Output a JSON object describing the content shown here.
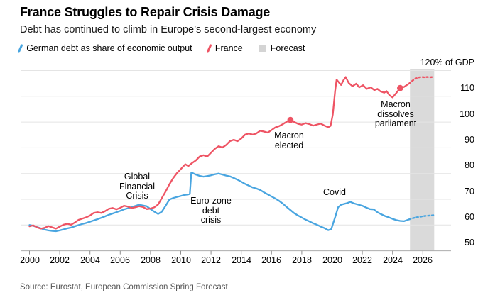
{
  "header": {
    "title": "France Struggles to Repair Crisis Damage",
    "subtitle": "Debt has continued to climb in Europe’s second-largest economy"
  },
  "legend": {
    "germany_label": "German debt as share of economic output",
    "france_label": "France",
    "forecast_label": "Forecast"
  },
  "source": "Source: Eurostat, European Commission Spring Forecast",
  "colors": {
    "germany_blue": "#49A5E0",
    "france_red": "#EE5464",
    "forecast_band": "#DADADA",
    "gridline": "#E4E4E4",
    "axis_line": "#ADADAD"
  },
  "chart_data": {
    "type": "line",
    "title": "France Struggles to Repair Crisis Damage",
    "subtitle": "Debt has continued to climb in Europe’s second-largest economy",
    "ylabel": "% of GDP",
    "ylim": [
      50,
      120
    ],
    "xlim": [
      2000,
      2026.75
    ],
    "grid": "horizontal",
    "legend_position": "top",
    "y_axis": {
      "top_label": "120% of GDP",
      "ticks": [
        "110",
        "100",
        "90",
        "80",
        "70",
        "60",
        "50"
      ],
      "gridline_values": [
        120,
        110,
        100,
        90,
        80,
        70,
        60,
        50
      ]
    },
    "x_axis": {
      "ticks": [
        "2000",
        "2002",
        "2004",
        "2006",
        "2008",
        "2010",
        "2012",
        "2014",
        "2016",
        "2018",
        "2020",
        "2022",
        "2024",
        "2026"
      ]
    },
    "forecast_band": {
      "start": 2025.15,
      "end": 2026.75,
      "color": "#DADADA",
      "label": "Forecast"
    },
    "series": [
      {
        "id": "germany",
        "name": "German debt as share of economic output",
        "color": "#49A5E0",
        "solid": [
          [
            2000,
            60.0
          ],
          [
            2000.25,
            59.7
          ],
          [
            2000.5,
            59.2
          ],
          [
            2000.75,
            58.7
          ],
          [
            2001,
            58.2
          ],
          [
            2001.25,
            57.9
          ],
          [
            2001.5,
            57.7
          ],
          [
            2001.75,
            57.6
          ],
          [
            2002,
            57.9
          ],
          [
            2002.25,
            58.3
          ],
          [
            2002.5,
            58.7
          ],
          [
            2002.75,
            59.0
          ],
          [
            2003,
            59.5
          ],
          [
            2003.25,
            60.0
          ],
          [
            2003.5,
            60.4
          ],
          [
            2003.75,
            60.8
          ],
          [
            2004,
            61.3
          ],
          [
            2004.25,
            61.8
          ],
          [
            2004.5,
            62.3
          ],
          [
            2004.75,
            62.8
          ],
          [
            2005,
            63.4
          ],
          [
            2005.25,
            64.0
          ],
          [
            2005.5,
            64.5
          ],
          [
            2005.75,
            65.0
          ],
          [
            2006,
            65.5
          ],
          [
            2006.25,
            66.1
          ],
          [
            2006.5,
            66.5
          ],
          [
            2006.75,
            67.0
          ],
          [
            2007,
            67.4
          ],
          [
            2007.25,
            67.9
          ],
          [
            2007.5,
            67.6
          ],
          [
            2007.75,
            67.3
          ],
          [
            2008,
            66.2
          ],
          [
            2008.25,
            65.2
          ],
          [
            2008.5,
            64.3
          ],
          [
            2008.75,
            65.2
          ],
          [
            2009,
            67.5
          ],
          [
            2009.25,
            69.9
          ],
          [
            2009.5,
            70.5
          ],
          [
            2009.75,
            70.9
          ],
          [
            2010,
            71.3
          ],
          [
            2010.25,
            71.7
          ],
          [
            2010.5,
            71.9
          ],
          [
            2010.6,
            72.1
          ],
          [
            2010.7,
            80.4
          ],
          [
            2011,
            79.6
          ],
          [
            2011.25,
            79.1
          ],
          [
            2011.5,
            78.8
          ],
          [
            2011.75,
            79.0
          ],
          [
            2012,
            79.3
          ],
          [
            2012.25,
            79.7
          ],
          [
            2012.5,
            80.0
          ],
          [
            2012.75,
            79.6
          ],
          [
            2013,
            79.2
          ],
          [
            2013.25,
            78.9
          ],
          [
            2013.5,
            78.3
          ],
          [
            2013.75,
            77.6
          ],
          [
            2014,
            76.8
          ],
          [
            2014.25,
            76.0
          ],
          [
            2014.5,
            75.3
          ],
          [
            2014.75,
            74.6
          ],
          [
            2015,
            74.2
          ],
          [
            2015.25,
            73.6
          ],
          [
            2015.5,
            72.7
          ],
          [
            2015.75,
            71.9
          ],
          [
            2016,
            71.1
          ],
          [
            2016.25,
            70.3
          ],
          [
            2016.5,
            69.4
          ],
          [
            2016.75,
            68.3
          ],
          [
            2017,
            67.0
          ],
          [
            2017.25,
            65.8
          ],
          [
            2017.5,
            64.6
          ],
          [
            2017.75,
            63.7
          ],
          [
            2018,
            62.9
          ],
          [
            2018.25,
            62.1
          ],
          [
            2018.5,
            61.4
          ],
          [
            2018.75,
            60.7
          ],
          [
            2019,
            60.1
          ],
          [
            2019.25,
            59.4
          ],
          [
            2019.5,
            58.8
          ],
          [
            2019.75,
            58.0
          ],
          [
            2019.95,
            58.4
          ],
          [
            2020.2,
            63.0
          ],
          [
            2020.4,
            66.9
          ],
          [
            2020.6,
            67.9
          ],
          [
            2020.8,
            68.2
          ],
          [
            2021,
            68.5
          ],
          [
            2021.2,
            69.0
          ],
          [
            2021.45,
            68.4
          ],
          [
            2021.7,
            68.0
          ],
          [
            2022,
            67.5
          ],
          [
            2022.25,
            66.8
          ],
          [
            2022.5,
            66.2
          ],
          [
            2022.75,
            66.1
          ],
          [
            2023,
            65.0
          ],
          [
            2023.25,
            64.2
          ],
          [
            2023.5,
            63.5
          ],
          [
            2023.75,
            63.0
          ],
          [
            2024,
            62.4
          ],
          [
            2024.25,
            61.9
          ],
          [
            2024.5,
            61.6
          ],
          [
            2024.75,
            61.5
          ],
          [
            2025.1,
            62.2
          ]
        ],
        "forecast": [
          [
            2025.1,
            62.2
          ],
          [
            2025.3,
            62.6
          ],
          [
            2025.5,
            62.9
          ],
          [
            2025.7,
            63.1
          ],
          [
            2025.9,
            63.3
          ],
          [
            2026.1,
            63.5
          ],
          [
            2026.3,
            63.6
          ],
          [
            2026.5,
            63.7
          ],
          [
            2026.7,
            63.8
          ]
        ]
      },
      {
        "id": "france",
        "name": "France",
        "color": "#EE5464",
        "solid": [
          [
            2000,
            59.5
          ],
          [
            2000.25,
            59.9
          ],
          [
            2000.5,
            59.1
          ],
          [
            2000.75,
            58.6
          ],
          [
            2001,
            58.9
          ],
          [
            2001.25,
            59.6
          ],
          [
            2001.5,
            59.1
          ],
          [
            2001.75,
            58.6
          ],
          [
            2002,
            59.4
          ],
          [
            2002.25,
            60.1
          ],
          [
            2002.5,
            60.5
          ],
          [
            2002.75,
            60.1
          ],
          [
            2003,
            61.0
          ],
          [
            2003.25,
            62.0
          ],
          [
            2003.5,
            62.5
          ],
          [
            2003.75,
            63.0
          ],
          [
            2004,
            63.7
          ],
          [
            2004.25,
            64.7
          ],
          [
            2004.5,
            65.0
          ],
          [
            2004.75,
            64.7
          ],
          [
            2005,
            65.4
          ],
          [
            2005.25,
            66.3
          ],
          [
            2005.5,
            66.6
          ],
          [
            2005.75,
            66.1
          ],
          [
            2006,
            66.7
          ],
          [
            2006.25,
            67.5
          ],
          [
            2006.5,
            67.2
          ],
          [
            2006.75,
            66.6
          ],
          [
            2007,
            66.9
          ],
          [
            2007.25,
            67.3
          ],
          [
            2007.5,
            67.0
          ],
          [
            2007.75,
            66.2
          ],
          [
            2008,
            66.4
          ],
          [
            2008.25,
            66.9
          ],
          [
            2008.5,
            68.0
          ],
          [
            2008.75,
            70.5
          ],
          [
            2009,
            73.0
          ],
          [
            2009.25,
            75.8
          ],
          [
            2009.5,
            78.2
          ],
          [
            2009.75,
            80.2
          ],
          [
            2010,
            81.7
          ],
          [
            2010.3,
            83.6
          ],
          [
            2010.5,
            82.9
          ],
          [
            2010.75,
            84.1
          ],
          [
            2011,
            85.1
          ],
          [
            2011.25,
            86.6
          ],
          [
            2011.5,
            87.1
          ],
          [
            2011.75,
            86.6
          ],
          [
            2012,
            88.1
          ],
          [
            2012.25,
            89.6
          ],
          [
            2012.5,
            90.6
          ],
          [
            2012.75,
            90.1
          ],
          [
            2013,
            91.1
          ],
          [
            2013.25,
            92.6
          ],
          [
            2013.5,
            93.1
          ],
          [
            2013.75,
            92.6
          ],
          [
            2014,
            93.6
          ],
          [
            2014.25,
            95.1
          ],
          [
            2014.5,
            95.6
          ],
          [
            2014.75,
            95.1
          ],
          [
            2015,
            95.6
          ],
          [
            2015.25,
            96.6
          ],
          [
            2015.5,
            96.3
          ],
          [
            2015.75,
            95.9
          ],
          [
            2016,
            96.9
          ],
          [
            2016.25,
            97.9
          ],
          [
            2016.5,
            98.4
          ],
          [
            2016.75,
            99.2
          ],
          [
            2017,
            100.1
          ],
          [
            2017.25,
            100.8
          ],
          [
            2017.5,
            100.0
          ],
          [
            2017.75,
            99.3
          ],
          [
            2018,
            99.0
          ],
          [
            2018.25,
            99.6
          ],
          [
            2018.5,
            99.2
          ],
          [
            2018.75,
            98.6
          ],
          [
            2019,
            99.0
          ],
          [
            2019.25,
            99.4
          ],
          [
            2019.5,
            98.6
          ],
          [
            2019.75,
            98.0
          ],
          [
            2019.9,
            98.5
          ],
          [
            2020.05,
            103.0
          ],
          [
            2020.2,
            112.0
          ],
          [
            2020.3,
            116.5
          ],
          [
            2020.45,
            115.4
          ],
          [
            2020.6,
            114.4
          ],
          [
            2020.75,
            116.2
          ],
          [
            2020.9,
            117.5
          ],
          [
            2021.1,
            115.2
          ],
          [
            2021.35,
            113.9
          ],
          [
            2021.6,
            114.9
          ],
          [
            2021.8,
            113.5
          ],
          [
            2022.05,
            114.3
          ],
          [
            2022.3,
            112.9
          ],
          [
            2022.55,
            113.5
          ],
          [
            2022.8,
            112.4
          ],
          [
            2023,
            112.9
          ],
          [
            2023.2,
            111.9
          ],
          [
            2023.45,
            111.4
          ],
          [
            2023.6,
            112.0
          ],
          [
            2023.8,
            110.4
          ],
          [
            2024,
            109.6
          ],
          [
            2024.25,
            111.3
          ],
          [
            2024.5,
            113.2
          ],
          [
            2024.75,
            113.6
          ],
          [
            2025.1,
            115.0
          ]
        ],
        "forecast": [
          [
            2025.1,
            115.0
          ],
          [
            2025.3,
            116.0
          ],
          [
            2025.5,
            116.8
          ],
          [
            2025.7,
            117.3
          ],
          [
            2025.9,
            117.5
          ],
          [
            2026.1,
            117.4
          ],
          [
            2026.3,
            117.5
          ],
          [
            2026.5,
            117.4
          ],
          [
            2026.7,
            117.5
          ]
        ]
      }
    ],
    "events": [
      {
        "label": "Macron elected",
        "year": 2017.25,
        "value": 100.8,
        "series": "france"
      },
      {
        "label": "Macron dissolves parliament",
        "year": 2024.5,
        "value": 113.2,
        "series": "france"
      }
    ],
    "annotations": {
      "gfc": {
        "lines": [
          "Global",
          "Financial",
          "Crisis"
        ]
      },
      "eurozone": {
        "lines": [
          "Euro-zone",
          "debt",
          "crisis"
        ]
      },
      "macron_elected": {
        "lines": [
          "Macron",
          "elected"
        ]
      },
      "covid": {
        "lines": [
          "Covid"
        ]
      },
      "macron_dissolves": {
        "lines": [
          "Macron",
          "dissolves",
          "parliament"
        ]
      }
    }
  }
}
